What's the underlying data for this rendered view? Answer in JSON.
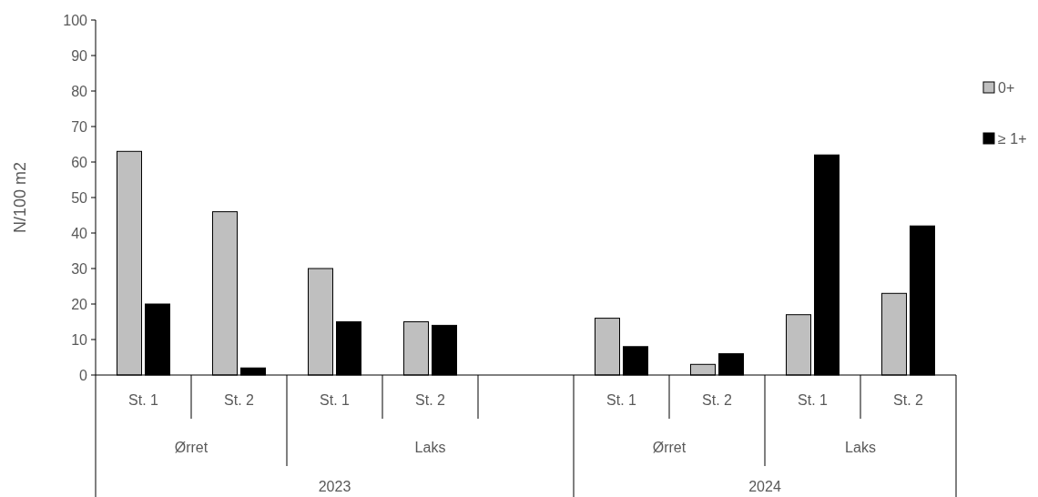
{
  "chart_data": {
    "type": "bar",
    "ylabel": "N/100 m2",
    "categories": [
      "St. 1",
      "St. 2",
      "St. 1",
      "St. 2",
      null,
      "St. 1",
      "St. 2",
      "St. 1",
      "St. 2"
    ],
    "series": [
      {
        "name": "0+",
        "color": "#bfbfbf",
        "values": [
          63,
          46,
          30,
          15,
          null,
          16,
          3,
          17,
          23
        ]
      },
      {
        "name": "≥ 1+",
        "color": "#000000",
        "values": [
          20,
          2,
          15,
          14,
          null,
          8,
          6,
          62,
          42
        ]
      }
    ],
    "ylim": [
      0,
      100
    ],
    "yticks": [
      0,
      10,
      20,
      30,
      40,
      50,
      60,
      70,
      80,
      90,
      100
    ],
    "legend": "right",
    "annotations": [
      "Ørret",
      "Laks",
      "Ørret",
      "Laks",
      "2023",
      "2024"
    ]
  }
}
